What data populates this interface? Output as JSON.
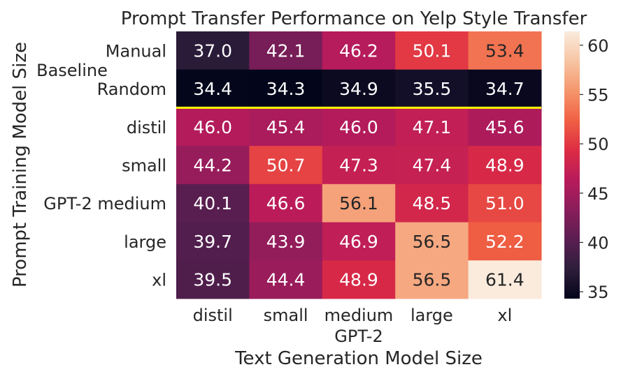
{
  "chart_data": {
    "type": "heatmap",
    "title": "Prompt Transfer Performance on Yelp Style Transfer",
    "xlabel": "Text Generation Model Size",
    "xlabel_group": "GPT-2",
    "ylabel": "Prompt Training Model Size",
    "x_categories": [
      "distil",
      "small",
      "medium",
      "large",
      "xl"
    ],
    "y_categories": [
      "Manual",
      "Random",
      "distil",
      "small",
      "GPT-2 medium",
      "large",
      "xl"
    ],
    "y_group_label": "Baseline",
    "values": [
      [
        37.0,
        42.1,
        46.2,
        50.1,
        53.4
      ],
      [
        34.4,
        34.3,
        34.9,
        35.5,
        34.7
      ],
      [
        46.0,
        45.4,
        46.0,
        47.1,
        45.6
      ],
      [
        44.2,
        50.7,
        47.3,
        47.4,
        48.9
      ],
      [
        40.1,
        46.6,
        56.1,
        48.5,
        51.0
      ],
      [
        39.7,
        43.9,
        46.9,
        56.5,
        52.2
      ],
      [
        39.5,
        44.4,
        48.9,
        56.5,
        61.4
      ]
    ],
    "value_labels": [
      [
        "37.0",
        "42.1",
        "46.2",
        "50.1",
        "53.4"
      ],
      [
        "34.4",
        "34.3",
        "34.9",
        "35.5",
        "34.7"
      ],
      [
        "46.0",
        "45.4",
        "46.0",
        "47.1",
        "45.6"
      ],
      [
        "44.2",
        "50.7",
        "47.3",
        "47.4",
        "48.9"
      ],
      [
        "40.1",
        "46.6",
        "56.1",
        "48.5",
        "51.0"
      ],
      [
        "39.7",
        "43.9",
        "46.9",
        "56.5",
        "52.2"
      ],
      [
        "39.5",
        "44.4",
        "48.9",
        "56.5",
        "61.4"
      ]
    ],
    "colorbar": {
      "range": [
        34.3,
        61.4
      ],
      "ticks": [
        35,
        40,
        45,
        50,
        55,
        60
      ],
      "colormap": "rocket",
      "stops": [
        "#03051a",
        "#2e1e3c",
        "#5b1e51",
        "#8a1d5b",
        "#b81b5b",
        "#dd2c44",
        "#f06043",
        "#f5966c",
        "#f7c5a3",
        "#faebdd"
      ]
    },
    "separator_after_row": 1,
    "separator_color": "#ffff00"
  }
}
